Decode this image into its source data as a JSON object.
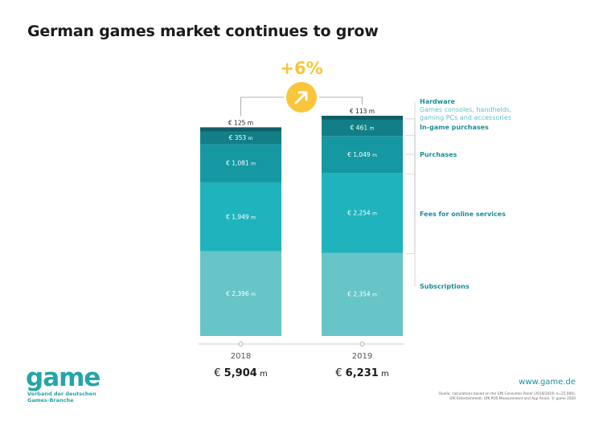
{
  "title": "German games market continues to grow",
  "growth": {
    "label": "+6%",
    "icon": "arrow-up-right-icon",
    "color": "#f9c53a"
  },
  "chart_data": {
    "type": "bar",
    "stacked": true,
    "currency_prefix": "€",
    "unit": "m",
    "categories": [
      "2018",
      "2019"
    ],
    "totals": [
      "5,904",
      "6,231"
    ],
    "total_values": [
      5904,
      6231
    ],
    "series": [
      {
        "name": "Hardware",
        "subtitle_lines": [
          "Games consoles, handhelds,",
          "gaming PCs and accessories"
        ],
        "color": "#67c5c7",
        "values": [
          2396,
          2354
        ],
        "labels": [
          "2,396",
          "2,354"
        ]
      },
      {
        "name": "In-game purchases",
        "subtitle_lines": [],
        "color": "#1fb4bd",
        "values": [
          1949,
          2254
        ],
        "labels": [
          "1,949",
          "2,254"
        ]
      },
      {
        "name": "Purchases",
        "subtitle_lines": [],
        "color": "#1598a2",
        "values": [
          1081,
          1049
        ],
        "labels": [
          "1,081",
          "1,049"
        ]
      },
      {
        "name": "Fees for online services",
        "subtitle_lines": [],
        "color": "#127f88",
        "values": [
          353,
          461
        ],
        "labels": [
          "353",
          "461"
        ]
      },
      {
        "name": "Subscriptions",
        "subtitle_lines": [],
        "color": "#0f5d66",
        "values": [
          125,
          113
        ],
        "labels": [
          "125",
          "113"
        ]
      }
    ]
  },
  "footer": {
    "logo_word": "game",
    "logo_sub1": "Verband der deutschen",
    "logo_sub2": "Games-Branche",
    "website": "www.game.de",
    "source_line1": "Quelle: calculations based on the GfK Consumer Panel (2018/2019; n=25,000),",
    "source_line2": "GfK Entertainment, GfK POS Measurement and App Annie. © game 2020"
  }
}
